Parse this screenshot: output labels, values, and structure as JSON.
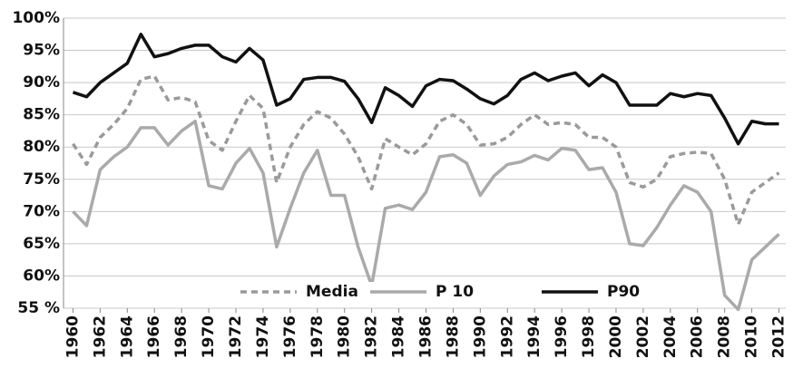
{
  "chart_data": {
    "type": "line",
    "x": [
      1960,
      1961,
      1962,
      1963,
      1964,
      1965,
      1966,
      1967,
      1968,
      1969,
      1970,
      1971,
      1972,
      1973,
      1974,
      1975,
      1976,
      1977,
      1978,
      1979,
      1980,
      1981,
      1982,
      1983,
      1984,
      1985,
      1986,
      1987,
      1988,
      1989,
      1990,
      1991,
      1992,
      1993,
      1994,
      1995,
      1996,
      1997,
      1998,
      1999,
      2000,
      2001,
      2002,
      2003,
      2004,
      2005,
      2006,
      2007,
      2008,
      2009,
      2010,
      2011,
      2012
    ],
    "xlim": [
      1959.3,
      2012.5
    ],
    "xticks": [
      1960,
      1962,
      1964,
      1966,
      1968,
      1970,
      1972,
      1974,
      1976,
      1978,
      1980,
      1982,
      1984,
      1986,
      1988,
      1990,
      1992,
      1994,
      1996,
      1998,
      2000,
      2002,
      2004,
      2006,
      2008,
      2010,
      2012
    ],
    "ylim": [
      55,
      100
    ],
    "yticks": [
      {
        "value": 55,
        "label": "55 %"
      },
      {
        "value": 60,
        "label": "60%"
      },
      {
        "value": 65,
        "label": "65%"
      },
      {
        "value": 70,
        "label": "70%"
      },
      {
        "value": 75,
        "label": "75%"
      },
      {
        "value": 80,
        "label": "80%"
      },
      {
        "value": 85,
        "label": "85%"
      },
      {
        "value": 90,
        "label": "90%"
      },
      {
        "value": 95,
        "label": "95%"
      },
      {
        "value": 100,
        "label": "100%"
      }
    ],
    "grid": true,
    "legend": "bottom",
    "series": [
      {
        "name": "Media",
        "color": "#9a9a9a",
        "dashed": true,
        "values": [
          80.5,
          77.3,
          81.5,
          83.5,
          86,
          90.5,
          91,
          87.3,
          87.7,
          87,
          81,
          79.5,
          84,
          88,
          86,
          74.5,
          80,
          83.5,
          85.5,
          84.5,
          82,
          78.5,
          73.5,
          81.3,
          80,
          78.8,
          80.5,
          84,
          85,
          83.5,
          80.3,
          80.5,
          81.5,
          83.5,
          85,
          83.5,
          83.8,
          83.5,
          81.5,
          81.5,
          80,
          74.5,
          73.8,
          75,
          78.5,
          79,
          79.2,
          79,
          75,
          68,
          73,
          74.5,
          76
        ]
      },
      {
        "name": "P 10",
        "color": "#aaaaaa",
        "dashed": false,
        "values": [
          70,
          67.8,
          76.5,
          78.5,
          80,
          83,
          83,
          80.3,
          82.5,
          84,
          74,
          73.5,
          77.5,
          79.8,
          76,
          64.5,
          70.5,
          76,
          79.5,
          72.5,
          72.5,
          64.5,
          58.5,
          70.5,
          71,
          70.3,
          73,
          78.5,
          78.8,
          77.5,
          72.5,
          75.5,
          77.3,
          77.7,
          78.7,
          78,
          79.8,
          79.5,
          76.5,
          76.8,
          73,
          65,
          64.7,
          67.5,
          71,
          74,
          73,
          70,
          57,
          54.8,
          62.5,
          64.5,
          66.5
        ]
      },
      {
        "name": "P90",
        "color": "#111111",
        "dashed": false,
        "values": [
          88.5,
          87.8,
          90,
          91.5,
          93,
          97.5,
          94,
          94.5,
          95.3,
          95.8,
          95.8,
          94,
          93.2,
          95.3,
          93.5,
          86.5,
          87.5,
          90.5,
          90.8,
          90.8,
          90.2,
          87.5,
          83.8,
          89.2,
          88,
          86.3,
          89.5,
          90.5,
          90.3,
          89,
          87.5,
          86.7,
          88,
          90.5,
          91.5,
          90.3,
          91,
          91.5,
          89.5,
          91.2,
          90,
          86.5,
          86.5,
          86.5,
          88.3,
          87.8,
          88.3,
          88,
          84.5,
          80.5,
          84,
          83.6,
          83.6
        ]
      }
    ]
  }
}
